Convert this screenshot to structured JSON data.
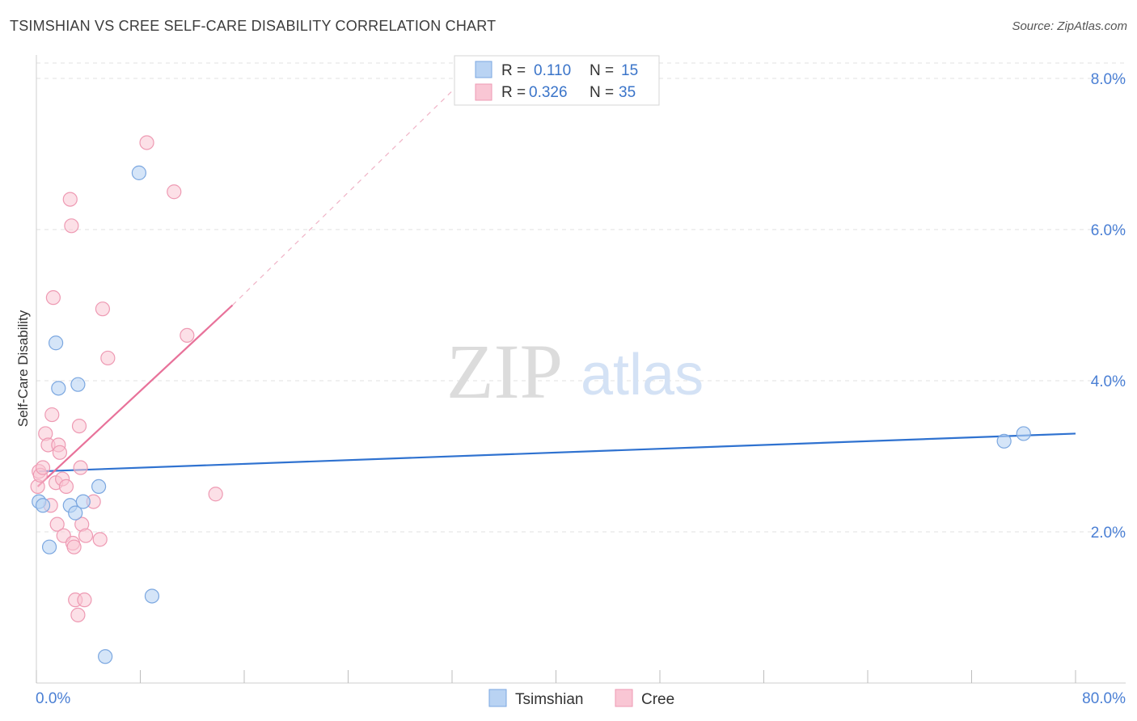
{
  "title": "TSIMSHIAN VS CREE SELF-CARE DISABILITY CORRELATION CHART",
  "source": "Source: ZipAtlas.com",
  "watermark": {
    "part1": "ZIP",
    "part2": "atlas"
  },
  "colors": {
    "tsimshian_fill": "#b9d3f3",
    "tsimshian_stroke": "#7ba7e0",
    "tsimshian_line": "#2f72d0",
    "cree_fill": "#f9c6d4",
    "cree_stroke": "#ee9ab3",
    "cree_line": "#e8729a",
    "axis_label": "#4a7fd4",
    "grid": "#e2e2e2"
  },
  "legend": {
    "rows": [
      {
        "r_label": "R =",
        "r_value": "0.110",
        "n_label": "N =",
        "n_value": "15"
      },
      {
        "r_label": "R =",
        "r_value": "0.326",
        "n_label": "N =",
        "n_value": "35"
      }
    ],
    "bottom": [
      "Tsimshian",
      "Cree"
    ]
  },
  "chart_data": {
    "type": "scatter",
    "title": "TSIMSHIAN VS CREE SELF-CARE DISABILITY CORRELATION CHART",
    "xlabel": "",
    "ylabel": "Self-Care Disability",
    "xlim": [
      0,
      80
    ],
    "ylim": [
      0,
      8.3
    ],
    "x_tick_labels": [
      "0.0%",
      "80.0%"
    ],
    "y_ticks": [
      2,
      4,
      6,
      8
    ],
    "y_tick_labels": [
      "2.0%",
      "4.0%",
      "6.0%",
      "8.0%"
    ],
    "grid": true,
    "legend_position": "top-center",
    "series": [
      {
        "name": "Tsimshian",
        "r": 0.11,
        "n": 15,
        "points": [
          [
            0.2,
            2.4
          ],
          [
            0.5,
            2.35
          ],
          [
            1.0,
            1.8
          ],
          [
            1.5,
            4.5
          ],
          [
            1.7,
            3.9
          ],
          [
            2.6,
            2.35
          ],
          [
            3.0,
            2.25
          ],
          [
            3.2,
            3.95
          ],
          [
            3.6,
            2.4
          ],
          [
            4.8,
            2.6
          ],
          [
            5.3,
            0.35
          ],
          [
            7.9,
            6.75
          ],
          [
            8.9,
            1.15
          ],
          [
            74.5,
            3.2
          ],
          [
            76.0,
            3.3
          ]
        ],
        "trend": {
          "x": [
            0.2,
            80.0
          ],
          "y": [
            2.8,
            3.3
          ]
        }
      },
      {
        "name": "Cree",
        "r": 0.326,
        "n": 35,
        "points": [
          [
            0.1,
            2.6
          ],
          [
            0.2,
            2.8
          ],
          [
            0.3,
            2.75
          ],
          [
            0.5,
            2.85
          ],
          [
            0.7,
            3.3
          ],
          [
            0.9,
            3.15
          ],
          [
            1.1,
            2.35
          ],
          [
            1.2,
            3.55
          ],
          [
            1.3,
            5.1
          ],
          [
            1.5,
            2.65
          ],
          [
            1.6,
            2.1
          ],
          [
            1.7,
            3.15
          ],
          [
            1.8,
            3.05
          ],
          [
            2.0,
            2.7
          ],
          [
            2.1,
            1.95
          ],
          [
            2.3,
            2.6
          ],
          [
            2.6,
            6.4
          ],
          [
            2.7,
            6.05
          ],
          [
            2.8,
            1.85
          ],
          [
            2.9,
            1.8
          ],
          [
            3.0,
            1.1
          ],
          [
            3.2,
            0.9
          ],
          [
            3.3,
            3.4
          ],
          [
            3.4,
            2.85
          ],
          [
            3.5,
            2.1
          ],
          [
            3.7,
            1.1
          ],
          [
            3.8,
            1.95
          ],
          [
            4.4,
            2.4
          ],
          [
            4.9,
            1.9
          ],
          [
            5.1,
            4.95
          ],
          [
            5.5,
            4.3
          ],
          [
            8.5,
            7.15
          ],
          [
            10.6,
            6.5
          ],
          [
            11.6,
            4.6
          ],
          [
            13.8,
            2.5
          ]
        ],
        "trend": {
          "x": [
            0.1,
            15.1
          ],
          "y": [
            2.6,
            5.0
          ]
        },
        "trend_extension": {
          "x": [
            15.1,
            33.0
          ],
          "y": [
            5.0,
            8.0
          ]
        }
      }
    ]
  }
}
